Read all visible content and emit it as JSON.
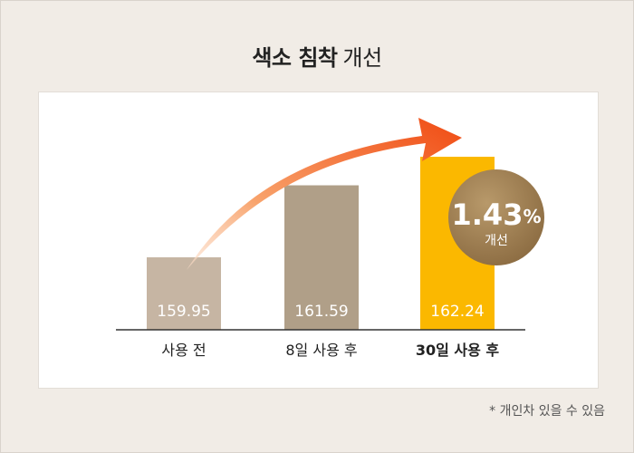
{
  "title_bold": "색소 침착",
  "title_light": "개선",
  "footnote": "* 개인차 있을 수 있음",
  "badge": {
    "value": "1.43",
    "unit": "%",
    "label": "개선"
  },
  "colors": {
    "background": "#f1ece6",
    "bar_1": "#c6b5a3",
    "bar_2": "#b09f88",
    "bar_3": "#fbb800",
    "badge": "#9e7f55",
    "arrow": "#f15a1e"
  },
  "chart_data": {
    "type": "bar",
    "categories": [
      "사용 전",
      "8일 사용 후",
      "30일 사용 후"
    ],
    "values": [
      159.95,
      161.59,
      162.24
    ],
    "value_labels": [
      "159.95",
      "161.59",
      "162.24"
    ],
    "title": "색소 침착 개선",
    "xlabel": "",
    "ylabel": "",
    "ylim": [
      158.3,
      162.55
    ],
    "grid": false,
    "legend": "none"
  }
}
